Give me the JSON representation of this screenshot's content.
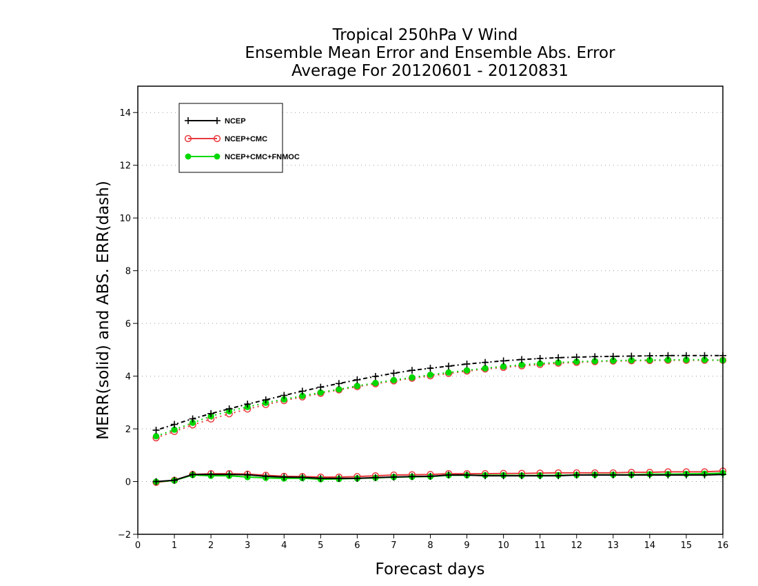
{
  "chart_data": {
    "type": "line",
    "title": [
      "Tropical 250hPa V Wind",
      "Ensemble Mean Error and Ensemble Abs. Error",
      "Average For 20120601 - 20120831"
    ],
    "xlabel": "Forecast days",
    "ylabel": "MERR(solid) and ABS. ERR(dash)",
    "xlim": [
      0,
      16
    ],
    "ylim": [
      -2,
      15
    ],
    "xticks": [
      0,
      1,
      2,
      3,
      4,
      5,
      6,
      7,
      8,
      9,
      10,
      11,
      12,
      13,
      14,
      15,
      16
    ],
    "yticks": [
      -2,
      0,
      2,
      4,
      6,
      8,
      10,
      12,
      14
    ],
    "grid": true,
    "legend_position": "top-left",
    "x": [
      0.5,
      1,
      1.5,
      2,
      2.5,
      3,
      3.5,
      4,
      4.5,
      5,
      5.5,
      6,
      6.5,
      7,
      7.5,
      8,
      8.5,
      9,
      9.5,
      10,
      10.5,
      11,
      11.5,
      12,
      12.5,
      13,
      13.5,
      14,
      14.5,
      15,
      15.5,
      16
    ],
    "series": [
      {
        "name": "NCEP",
        "color": "#000000",
        "marker": "plus",
        "merr": [
          0.0,
          0.05,
          0.27,
          0.27,
          0.27,
          0.26,
          0.2,
          0.17,
          0.16,
          0.12,
          0.12,
          0.12,
          0.15,
          0.17,
          0.19,
          0.2,
          0.25,
          0.25,
          0.22,
          0.22,
          0.22,
          0.22,
          0.22,
          0.25,
          0.25,
          0.25,
          0.25,
          0.25,
          0.25,
          0.25,
          0.25,
          0.27
        ],
        "abs_err": [
          1.95,
          2.17,
          2.38,
          2.58,
          2.76,
          2.94,
          3.1,
          3.27,
          3.43,
          3.58,
          3.72,
          3.86,
          3.99,
          4.11,
          4.22,
          4.3,
          4.38,
          4.46,
          4.52,
          4.58,
          4.63,
          4.67,
          4.7,
          4.72,
          4.74,
          4.75,
          4.76,
          4.77,
          4.78,
          4.78,
          4.78,
          4.78
        ]
      },
      {
        "name": "NCEP+CMC",
        "color": "#e8393d",
        "marker": "open-circle",
        "merr": [
          -0.03,
          0.05,
          0.27,
          0.3,
          0.3,
          0.28,
          0.24,
          0.2,
          0.19,
          0.17,
          0.17,
          0.19,
          0.22,
          0.25,
          0.26,
          0.27,
          0.3,
          0.3,
          0.3,
          0.31,
          0.31,
          0.32,
          0.33,
          0.33,
          0.33,
          0.33,
          0.35,
          0.35,
          0.37,
          0.37,
          0.37,
          0.4
        ],
        "abs_err": [
          1.66,
          1.9,
          2.15,
          2.37,
          2.57,
          2.75,
          2.92,
          3.07,
          3.21,
          3.35,
          3.48,
          3.6,
          3.71,
          3.82,
          3.92,
          4.01,
          4.1,
          4.19,
          4.27,
          4.33,
          4.39,
          4.44,
          4.49,
          4.52,
          4.55,
          4.57,
          4.58,
          4.59,
          4.6,
          4.6,
          4.6,
          4.6
        ]
      },
      {
        "name": "NCEP+CMC+FNMOC",
        "color": "#00d800",
        "marker": "filled-circle",
        "merr": [
          -0.01,
          0.04,
          0.25,
          0.22,
          0.22,
          0.17,
          0.14,
          0.12,
          0.13,
          0.09,
          0.1,
          0.12,
          0.14,
          0.17,
          0.18,
          0.19,
          0.24,
          0.24,
          0.24,
          0.24,
          0.23,
          0.23,
          0.24,
          0.25,
          0.26,
          0.26,
          0.26,
          0.28,
          0.28,
          0.29,
          0.3,
          0.32
        ],
        "abs_err": [
          1.72,
          1.97,
          2.23,
          2.48,
          2.67,
          2.83,
          2.99,
          3.12,
          3.25,
          3.38,
          3.5,
          3.63,
          3.74,
          3.85,
          3.95,
          4.05,
          4.14,
          4.22,
          4.3,
          4.37,
          4.43,
          4.48,
          4.52,
          4.55,
          4.57,
          4.59,
          4.6,
          4.61,
          4.62,
          4.62,
          4.62,
          4.6
        ]
      }
    ]
  }
}
